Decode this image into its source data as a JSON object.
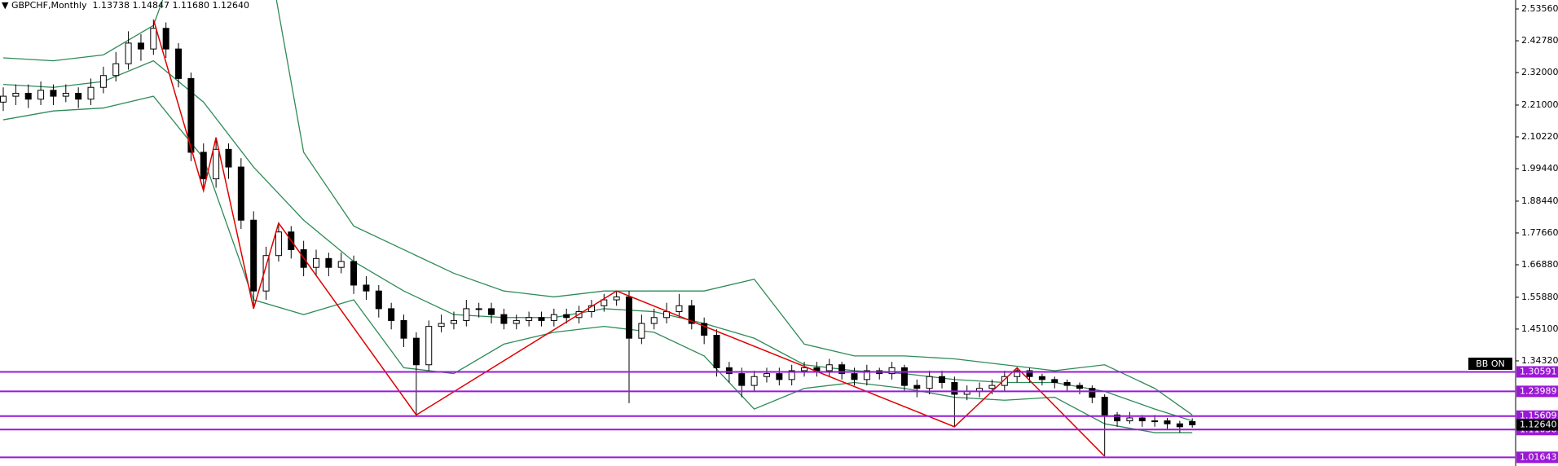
{
  "chart_data": {
    "type": "candlestick",
    "title": "GBPCHF,Monthly",
    "last_bar_labels": [
      "1.13738",
      "1.14847",
      "1.11680",
      "1.12640"
    ],
    "indicator_label": "BB ON",
    "up_color": "#ffffff",
    "down_color": "#000000",
    "band_color": "#2e8b57",
    "zigzag_color": "#e00000",
    "level_color": "#9b19d6",
    "ylim": [
      0.987,
      2.566
    ],
    "yticks": [
      {
        "value": 2.5356,
        "label": "2.53560"
      },
      {
        "value": 2.4278,
        "label": "2.42780"
      },
      {
        "value": 2.32,
        "label": "2.32000"
      },
      {
        "value": 2.21,
        "label": "2.21000"
      },
      {
        "value": 2.1022,
        "label": "2.10220"
      },
      {
        "value": 1.9944,
        "label": "1.99440"
      },
      {
        "value": 1.8844,
        "label": "1.88440"
      },
      {
        "value": 1.7766,
        "label": "1.77660"
      },
      {
        "value": 1.6688,
        "label": "1.66880"
      },
      {
        "value": 1.5588,
        "label": "1.55880"
      },
      {
        "value": 1.451,
        "label": "1.45100"
      },
      {
        "value": 1.3432,
        "label": "1.34320"
      }
    ],
    "open": [
      2.22,
      2.24,
      2.25,
      2.23,
      2.26,
      2.24,
      2.25,
      2.23,
      2.27,
      2.31,
      2.35,
      2.42,
      2.4,
      2.47,
      2.4,
      2.3,
      2.05,
      1.96,
      2.06,
      2.0,
      1.82,
      1.58,
      1.7,
      1.78,
      1.72,
      1.66,
      1.69,
      1.66,
      1.68,
      1.6,
      1.58,
      1.52,
      1.48,
      1.42,
      1.33,
      1.46,
      1.47,
      1.48,
      1.52,
      1.52,
      1.5,
      1.47,
      1.48,
      1.49,
      1.48,
      1.5,
      1.49,
      1.51,
      1.53,
      1.55,
      1.56,
      1.42,
      1.47,
      1.49,
      1.51,
      1.53,
      1.47,
      1.43,
      1.32,
      1.3,
      1.26,
      1.29,
      1.3,
      1.28,
      1.31,
      1.32,
      1.31,
      1.33,
      1.3,
      1.28,
      1.31,
      1.3,
      1.32,
      1.26,
      1.25,
      1.29,
      1.27,
      1.23,
      1.24,
      1.25,
      1.26,
      1.29,
      1.31,
      1.29,
      1.28,
      1.27,
      1.26,
      1.25,
      1.22,
      1.16,
      1.14,
      1.15,
      1.14,
      1.14,
      1.13,
      1.13738
    ],
    "high": [
      2.27,
      2.28,
      2.28,
      2.29,
      2.28,
      2.28,
      2.27,
      2.3,
      2.34,
      2.39,
      2.46,
      2.45,
      2.5,
      2.49,
      2.42,
      2.32,
      2.08,
      2.1,
      2.08,
      2.03,
      1.85,
      1.73,
      1.81,
      1.8,
      1.75,
      1.72,
      1.71,
      1.71,
      1.7,
      1.63,
      1.6,
      1.54,
      1.5,
      1.44,
      1.48,
      1.5,
      1.51,
      1.55,
      1.54,
      1.54,
      1.52,
      1.5,
      1.51,
      1.51,
      1.52,
      1.52,
      1.53,
      1.55,
      1.57,
      1.58,
      1.58,
      1.5,
      1.52,
      1.54,
      1.57,
      1.55,
      1.49,
      1.45,
      1.34,
      1.32,
      1.31,
      1.32,
      1.32,
      1.33,
      1.34,
      1.34,
      1.35,
      1.34,
      1.32,
      1.33,
      1.32,
      1.34,
      1.33,
      1.28,
      1.31,
      1.31,
      1.29,
      1.26,
      1.27,
      1.28,
      1.31,
      1.32,
      1.32,
      1.3,
      1.29,
      1.28,
      1.27,
      1.26,
      1.23,
      1.17,
      1.17,
      1.16,
      1.16,
      1.15,
      1.14,
      1.14847
    ],
    "low": [
      2.19,
      2.21,
      2.2,
      2.21,
      2.21,
      2.22,
      2.2,
      2.21,
      2.25,
      2.29,
      2.33,
      2.36,
      2.38,
      2.37,
      2.27,
      2.02,
      1.92,
      1.93,
      1.96,
      1.79,
      1.52,
      1.55,
      1.68,
      1.69,
      1.63,
      1.63,
      1.63,
      1.64,
      1.57,
      1.55,
      1.49,
      1.45,
      1.39,
      1.16,
      1.31,
      1.44,
      1.45,
      1.46,
      1.49,
      1.47,
      1.45,
      1.45,
      1.46,
      1.46,
      1.46,
      1.47,
      1.47,
      1.49,
      1.51,
      1.53,
      1.2,
      1.4,
      1.45,
      1.47,
      1.49,
      1.45,
      1.4,
      1.29,
      1.27,
      1.22,
      1.24,
      1.27,
      1.26,
      1.26,
      1.29,
      1.29,
      1.29,
      1.28,
      1.26,
      1.26,
      1.28,
      1.28,
      1.24,
      1.22,
      1.23,
      1.25,
      1.12,
      1.21,
      1.22,
      1.23,
      1.24,
      1.27,
      1.27,
      1.26,
      1.25,
      1.24,
      1.23,
      1.2,
      1.02,
      1.12,
      1.13,
      1.12,
      1.12,
      1.11,
      1.1,
      1.1168
    ],
    "close": [
      2.24,
      2.25,
      2.23,
      2.26,
      2.24,
      2.25,
      2.23,
      2.27,
      2.31,
      2.35,
      2.42,
      2.4,
      2.47,
      2.4,
      2.3,
      2.05,
      1.96,
      2.06,
      2.0,
      1.82,
      1.58,
      1.7,
      1.78,
      1.72,
      1.66,
      1.69,
      1.66,
      1.68,
      1.6,
      1.58,
      1.52,
      1.48,
      1.42,
      1.33,
      1.46,
      1.47,
      1.48,
      1.52,
      1.52,
      1.5,
      1.47,
      1.48,
      1.49,
      1.48,
      1.5,
      1.49,
      1.51,
      1.53,
      1.55,
      1.56,
      1.42,
      1.47,
      1.49,
      1.51,
      1.53,
      1.47,
      1.43,
      1.32,
      1.3,
      1.26,
      1.29,
      1.3,
      1.28,
      1.31,
      1.32,
      1.31,
      1.33,
      1.3,
      1.28,
      1.31,
      1.3,
      1.32,
      1.26,
      1.25,
      1.29,
      1.27,
      1.23,
      1.24,
      1.25,
      1.26,
      1.29,
      1.31,
      1.29,
      1.28,
      1.27,
      1.26,
      1.25,
      1.22,
      1.16,
      1.14,
      1.15,
      1.14,
      1.14,
      1.13,
      1.12,
      1.1264
    ],
    "bands": {
      "x": [
        0,
        4,
        8,
        12,
        16,
        20,
        24,
        28,
        32,
        36,
        40,
        44,
        48,
        52,
        56,
        60,
        64,
        68,
        72,
        76,
        80,
        84,
        88,
        92,
        95
      ],
      "upper": [
        2.37,
        2.36,
        2.38,
        2.48,
        2.95,
        3.0,
        2.05,
        1.8,
        1.72,
        1.64,
        1.58,
        1.56,
        1.58,
        1.58,
        1.58,
        1.62,
        1.4,
        1.36,
        1.36,
        1.35,
        1.33,
        1.31,
        1.33,
        1.25,
        1.16
      ],
      "middle": [
        2.28,
        2.27,
        2.29,
        2.36,
        2.22,
        2.0,
        1.82,
        1.68,
        1.58,
        1.5,
        1.49,
        1.49,
        1.52,
        1.51,
        1.47,
        1.42,
        1.33,
        1.31,
        1.3,
        1.28,
        1.27,
        1.27,
        1.24,
        1.18,
        1.14
      ],
      "lower": [
        2.16,
        2.19,
        2.2,
        2.24,
        2.03,
        1.55,
        1.5,
        1.55,
        1.32,
        1.3,
        1.4,
        1.44,
        1.46,
        1.44,
        1.36,
        1.18,
        1.25,
        1.27,
        1.25,
        1.22,
        1.21,
        1.22,
        1.13,
        1.1,
        1.1
      ]
    },
    "zigzag": {
      "x": [
        12,
        16,
        17,
        20,
        22,
        33,
        49,
        76,
        81,
        88
      ],
      "values": [
        2.5,
        1.92,
        2.1,
        1.52,
        1.81,
        1.16,
        1.58,
        1.12,
        1.32,
        1.02
      ]
    },
    "levels": [
      1.30591,
      1.23989,
      1.15609,
      1.11038,
      1.01643
    ]
  }
}
